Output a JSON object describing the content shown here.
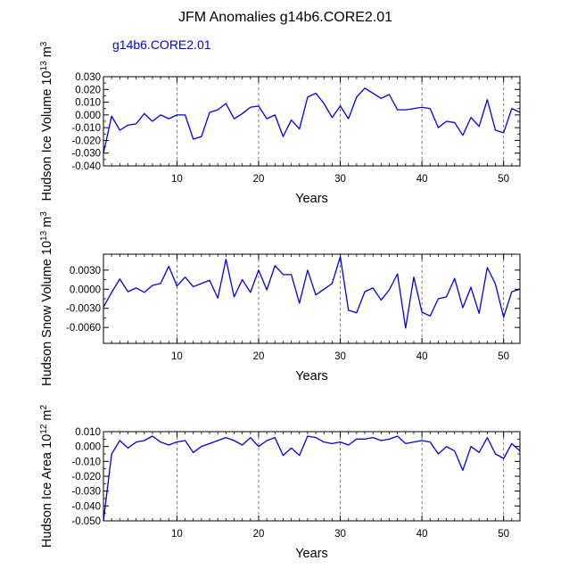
{
  "title": "JFM Anomalies g14b6.CORE2.01",
  "legend_label": "g14b6.CORE2.01",
  "colors": {
    "series": "#0000ee",
    "axis": "#000000",
    "grid": "#555555"
  },
  "chart_data": [
    {
      "type": "line",
      "panel": "top",
      "xlabel": "Years",
      "ylabel": "Hudson Ice Volume",
      "yunit_base": "10",
      "yunit_exp": "13",
      "yunit_label": "m",
      "yunit_label_exp": "3",
      "xlim": [
        1,
        52
      ],
      "ylim": [
        -0.04,
        0.03
      ],
      "xticks": [
        10,
        20,
        30,
        40,
        50
      ],
      "xtick_labels": [
        "10",
        "20",
        "30",
        "40",
        "50"
      ],
      "yticks": [
        -0.04,
        -0.03,
        -0.02,
        -0.01,
        0.0,
        0.01,
        0.02,
        0.03
      ],
      "ytick_labels": [
        "-0.040",
        "-0.030",
        "-0.020",
        "-0.010",
        "0.000",
        "0.010",
        "0.020",
        "0.030"
      ],
      "grid_x": [
        10,
        20,
        30,
        40,
        50
      ],
      "series": [
        {
          "name": "g14b6.CORE2.01",
          "x": [
            1,
            2,
            3,
            4,
            5,
            6,
            7,
            8,
            9,
            10,
            11,
            12,
            13,
            14,
            15,
            16,
            17,
            18,
            19,
            20,
            21,
            22,
            23,
            24,
            25,
            26,
            27,
            28,
            29,
            30,
            31,
            32,
            33,
            34,
            35,
            36,
            37,
            38,
            39,
            40,
            41,
            42,
            43,
            44,
            45,
            46,
            47,
            48,
            49,
            50,
            51,
            52
          ],
          "values": [
            -0.03,
            -0.001,
            -0.012,
            -0.008,
            -0.007,
            0.001,
            -0.005,
            0.0,
            -0.003,
            0.0,
            0.0,
            -0.019,
            -0.017,
            0.002,
            0.004,
            0.009,
            -0.003,
            0.001,
            0.006,
            0.007,
            -0.003,
            0.0,
            -0.017,
            -0.004,
            -0.011,
            0.014,
            0.017,
            0.009,
            -0.002,
            0.007,
            -0.003,
            0.014,
            0.021,
            0.017,
            0.013,
            0.016,
            0.004,
            0.004,
            0.005,
            0.006,
            0.005,
            -0.01,
            -0.005,
            -0.006,
            -0.016,
            -0.002,
            -0.009,
            0.012,
            -0.012,
            -0.014,
            0.005,
            0.002
          ]
        }
      ]
    },
    {
      "type": "line",
      "panel": "middle",
      "xlabel": "Years",
      "ylabel": "Hudson Snow Volume",
      "yunit_base": "10",
      "yunit_exp": "13",
      "yunit_label": "m",
      "yunit_label_exp": "3",
      "xlim": [
        1,
        52
      ],
      "ylim": [
        -0.0085,
        0.0055
      ],
      "xticks": [
        10,
        20,
        30,
        40,
        50
      ],
      "xtick_labels": [
        "10",
        "20",
        "30",
        "40",
        "50"
      ],
      "yticks": [
        -0.006,
        -0.003,
        0.0,
        0.003
      ],
      "ytick_labels": [
        "-0.0060",
        "-0.0030",
        "0.0000",
        "0.0030"
      ],
      "grid_x": [
        10,
        20,
        30,
        40,
        50
      ],
      "series": [
        {
          "name": "g14b6.CORE2.01",
          "x": [
            1,
            2,
            3,
            4,
            5,
            6,
            7,
            8,
            9,
            10,
            11,
            12,
            13,
            14,
            15,
            16,
            17,
            18,
            19,
            20,
            21,
            22,
            23,
            24,
            25,
            26,
            27,
            28,
            29,
            30,
            31,
            32,
            33,
            34,
            35,
            36,
            37,
            38,
            39,
            40,
            41,
            42,
            43,
            44,
            45,
            46,
            47,
            48,
            49,
            50,
            51,
            52
          ],
          "values": [
            -0.0028,
            -0.0005,
            0.0016,
            -0.0004,
            0.0002,
            -0.0005,
            0.0006,
            0.0009,
            0.0036,
            0.0005,
            0.0019,
            0.0004,
            0.0009,
            0.0014,
            -0.0014,
            0.0047,
            -0.0012,
            0.0015,
            -0.0005,
            0.003,
            -0.0001,
            0.0037,
            0.0023,
            0.0023,
            -0.0022,
            0.003,
            -0.0009,
            0.0,
            0.0009,
            0.0051,
            -0.0033,
            -0.0037,
            -0.0004,
            0.0002,
            -0.0017,
            -0.0001,
            0.0024,
            -0.0061,
            0.0019,
            -0.0036,
            -0.0042,
            -0.0015,
            -0.0012,
            0.0017,
            -0.0029,
            0.0003,
            -0.0038,
            0.0034,
            0.0008,
            -0.0044,
            -0.0004,
            0.0
          ]
        }
      ]
    },
    {
      "type": "line",
      "panel": "bottom",
      "xlabel": "Years",
      "ylabel": "Hudson Ice Area",
      "yunit_base": "10",
      "yunit_exp": "12",
      "yunit_label": "m",
      "yunit_label_exp": "2",
      "xlim": [
        1,
        52
      ],
      "ylim": [
        -0.05,
        0.01
      ],
      "xticks": [
        10,
        20,
        30,
        40,
        50
      ],
      "xtick_labels": [
        "10",
        "20",
        "30",
        "40",
        "50"
      ],
      "yticks": [
        -0.05,
        -0.04,
        -0.03,
        -0.02,
        -0.01,
        0.0,
        0.01
      ],
      "ytick_labels": [
        "-0.050",
        "-0.040",
        "-0.030",
        "-0.020",
        "-0.010",
        "0.000",
        "0.010"
      ],
      "grid_x": [
        10,
        20,
        30,
        40,
        50
      ],
      "series": [
        {
          "name": "g14b6.CORE2.01",
          "x": [
            1,
            2,
            3,
            4,
            5,
            6,
            7,
            8,
            9,
            10,
            11,
            12,
            13,
            14,
            15,
            16,
            17,
            18,
            19,
            20,
            21,
            22,
            23,
            24,
            25,
            26,
            27,
            28,
            29,
            30,
            31,
            32,
            33,
            34,
            35,
            36,
            37,
            38,
            39,
            40,
            41,
            42,
            43,
            44,
            45,
            46,
            47,
            48,
            49,
            50,
            51,
            52
          ],
          "values": [
            -0.05,
            -0.005,
            0.004,
            -0.001,
            0.003,
            0.004,
            0.007,
            0.003,
            0.001,
            0.003,
            0.004,
            -0.004,
            0.0,
            0.002,
            0.004,
            0.006,
            0.004,
            0.001,
            0.006,
            0.0,
            0.004,
            0.006,
            -0.006,
            -0.001,
            -0.006,
            0.007,
            0.006,
            0.003,
            0.002,
            0.003,
            0.001,
            0.005,
            0.005,
            0.006,
            0.004,
            0.005,
            0.007,
            0.002,
            0.003,
            0.004,
            0.003,
            -0.005,
            0.0,
            -0.003,
            -0.016,
            0.0,
            -0.004,
            0.006,
            -0.005,
            -0.008,
            0.002,
            -0.003
          ]
        }
      ]
    }
  ]
}
